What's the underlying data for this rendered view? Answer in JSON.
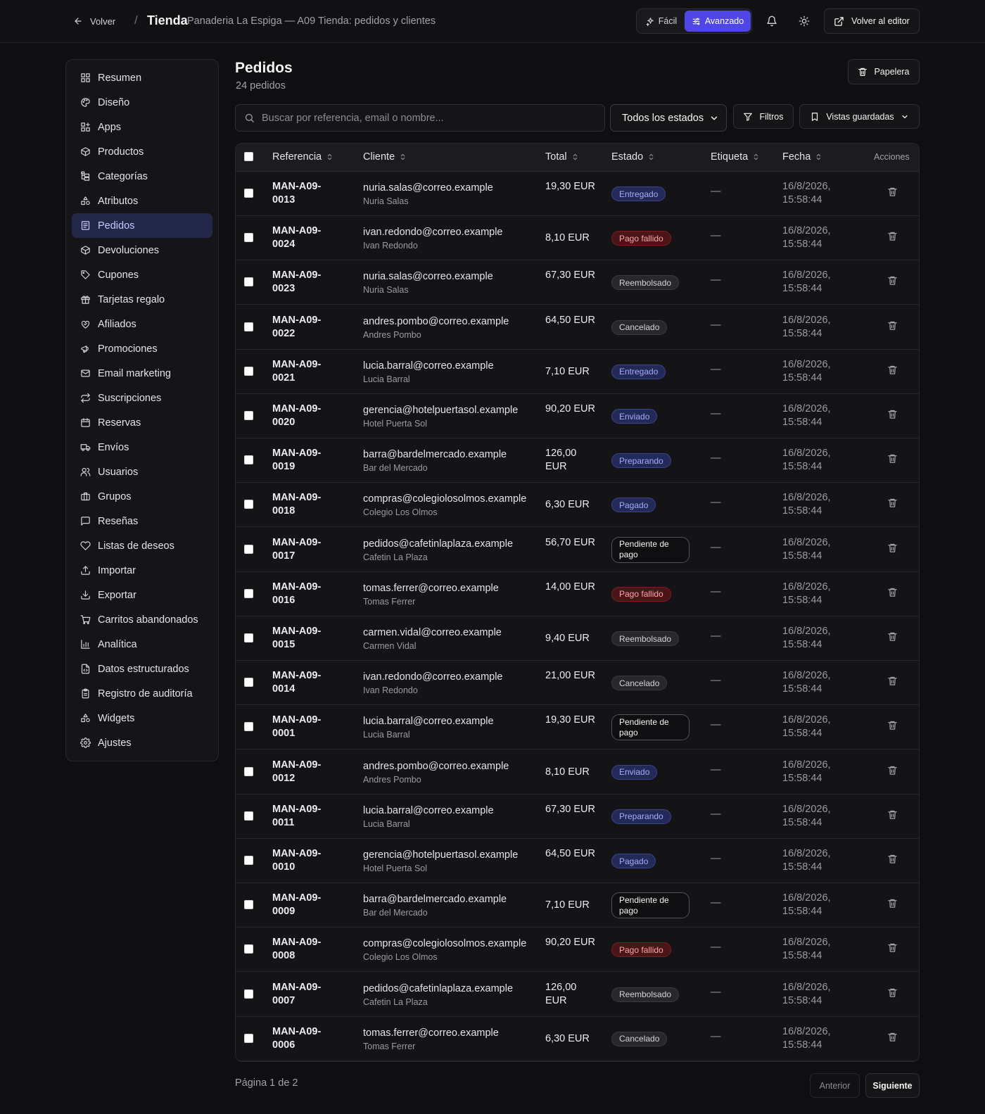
{
  "topbar": {
    "back_label": "Volver",
    "separator": "/",
    "title": "Tienda",
    "subtitle": "Panaderia La Espiga — A09 Tienda: pedidos y clientes",
    "mode_easy": "Fácil",
    "mode_advanced": "Avanzado",
    "editor_label": "Volver al editor"
  },
  "sidebar": {
    "items": [
      {
        "label": "Resumen",
        "icon": "grid-icon"
      },
      {
        "label": "Diseño",
        "icon": "palette-icon"
      },
      {
        "label": "Apps",
        "icon": "apps-icon"
      },
      {
        "label": "Productos",
        "icon": "box-icon"
      },
      {
        "label": "Categorías",
        "icon": "tree-icon"
      },
      {
        "label": "Atributos",
        "icon": "shapes-icon"
      },
      {
        "label": "Pedidos",
        "icon": "receipt-icon"
      },
      {
        "label": "Devoluciones",
        "icon": "box-icon"
      },
      {
        "label": "Cupones",
        "icon": "tag-icon"
      },
      {
        "label": "Tarjetas regalo",
        "icon": "gift-icon"
      },
      {
        "label": "Afiliados",
        "icon": "handshake-icon"
      },
      {
        "label": "Promociones",
        "icon": "megaphone-icon"
      },
      {
        "label": "Email marketing",
        "icon": "mail-icon"
      },
      {
        "label": "Suscripciones",
        "icon": "repeat-icon"
      },
      {
        "label": "Reservas",
        "icon": "calendar-icon"
      },
      {
        "label": "Envíos",
        "icon": "truck-icon"
      },
      {
        "label": "Usuarios",
        "icon": "users-icon"
      },
      {
        "label": "Grupos",
        "icon": "briefcase-icon"
      },
      {
        "label": "Reseñas",
        "icon": "message-icon"
      },
      {
        "label": "Listas de deseos",
        "icon": "heart-icon"
      },
      {
        "label": "Importar",
        "icon": "upload-icon"
      },
      {
        "label": "Exportar",
        "icon": "download-icon"
      },
      {
        "label": "Carritos abandonados",
        "icon": "cart-icon"
      },
      {
        "label": "Analítica",
        "icon": "chart-icon"
      },
      {
        "label": "Datos estructurados",
        "icon": "file-code-icon"
      },
      {
        "label": "Registro de auditoría",
        "icon": "clipboard-icon"
      },
      {
        "label": "Widgets",
        "icon": "shapes-icon"
      },
      {
        "label": "Ajustes",
        "icon": "gear-icon"
      }
    ],
    "active_index": 6
  },
  "main": {
    "title": "Pedidos",
    "count": "24 pedidos",
    "trash_label": "Papelera",
    "search_placeholder": "Buscar por referencia, email o nombre...",
    "status_filter": "Todos los estados",
    "filters_label": "Filtros",
    "saved_views_label": "Vistas guardadas"
  },
  "table": {
    "columns": {
      "reference": "Referencia",
      "client": "Cliente",
      "total": "Total",
      "status": "Estado",
      "tag": "Etiqueta",
      "date": "Fecha",
      "actions": "Acciones"
    },
    "rows": [
      {
        "ref": "MAN-A09-0013",
        "email": "nuria.salas@correo.example",
        "name": "Nuria Salas",
        "total": "19,30 EUR",
        "status": "Entregado",
        "tag": "—",
        "date": "16/8/2026, 15:58:44"
      },
      {
        "ref": "MAN-A09-0024",
        "email": "ivan.redondo@correo.example",
        "name": "Ivan Redondo",
        "total": "8,10 EUR",
        "status": "Pago fallido",
        "tag": "—",
        "date": "16/8/2026, 15:58:44"
      },
      {
        "ref": "MAN-A09-0023",
        "email": "nuria.salas@correo.example",
        "name": "Nuria Salas",
        "total": "67,30 EUR",
        "status": "Reembolsado",
        "tag": "—",
        "date": "16/8/2026, 15:58:44"
      },
      {
        "ref": "MAN-A09-0022",
        "email": "andres.pombo@correo.example",
        "name": "Andres Pombo",
        "total": "64,50 EUR",
        "status": "Cancelado",
        "tag": "—",
        "date": "16/8/2026, 15:58:44"
      },
      {
        "ref": "MAN-A09-0021",
        "email": "lucia.barral@correo.example",
        "name": "Lucia Barral",
        "total": "7,10 EUR",
        "status": "Entregado",
        "tag": "—",
        "date": "16/8/2026, 15:58:44"
      },
      {
        "ref": "MAN-A09-0020",
        "email": "gerencia@hotelpuertasol.example",
        "name": "Hotel Puerta Sol",
        "total": "90,20 EUR",
        "status": "Enviado",
        "tag": "—",
        "date": "16/8/2026, 15:58:44"
      },
      {
        "ref": "MAN-A09-0019",
        "email": "barra@bardelmercado.example",
        "name": "Bar del Mercado",
        "total": "126,00 EUR",
        "status": "Preparando",
        "tag": "—",
        "date": "16/8/2026, 15:58:44"
      },
      {
        "ref": "MAN-A09-0018",
        "email": "compras@colegiolosolmos.example",
        "name": "Colegio Los Olmos",
        "total": "6,30 EUR",
        "status": "Pagado",
        "tag": "—",
        "date": "16/8/2026, 15:58:44"
      },
      {
        "ref": "MAN-A09-0017",
        "email": "pedidos@cafetinlaplaza.example",
        "name": "Cafetin La Plaza",
        "total": "56,70 EUR",
        "status": "Pendiente de pago",
        "tag": "—",
        "date": "16/8/2026, 15:58:44"
      },
      {
        "ref": "MAN-A09-0016",
        "email": "tomas.ferrer@correo.example",
        "name": "Tomas Ferrer",
        "total": "14,00 EUR",
        "status": "Pago fallido",
        "tag": "—",
        "date": "16/8/2026, 15:58:44"
      },
      {
        "ref": "MAN-A09-0015",
        "email": "carmen.vidal@correo.example",
        "name": "Carmen Vidal",
        "total": "9,40 EUR",
        "status": "Reembolsado",
        "tag": "—",
        "date": "16/8/2026, 15:58:44"
      },
      {
        "ref": "MAN-A09-0014",
        "email": "ivan.redondo@correo.example",
        "name": "Ivan Redondo",
        "total": "21,00 EUR",
        "status": "Cancelado",
        "tag": "—",
        "date": "16/8/2026, 15:58:44"
      },
      {
        "ref": "MAN-A09-0001",
        "email": "lucia.barral@correo.example",
        "name": "Lucia Barral",
        "total": "19,30 EUR",
        "status": "Pendiente de pago",
        "tag": "—",
        "date": "16/8/2026, 15:58:44"
      },
      {
        "ref": "MAN-A09-0012",
        "email": "andres.pombo@correo.example",
        "name": "Andres Pombo",
        "total": "8,10 EUR",
        "status": "Enviado",
        "tag": "—",
        "date": "16/8/2026, 15:58:44"
      },
      {
        "ref": "MAN-A09-0011",
        "email": "lucia.barral@correo.example",
        "name": "Lucia Barral",
        "total": "67,30 EUR",
        "status": "Preparando",
        "tag": "—",
        "date": "16/8/2026, 15:58:44"
      },
      {
        "ref": "MAN-A09-0010",
        "email": "gerencia@hotelpuertasol.example",
        "name": "Hotel Puerta Sol",
        "total": "64,50 EUR",
        "status": "Pagado",
        "tag": "—",
        "date": "16/8/2026, 15:58:44"
      },
      {
        "ref": "MAN-A09-0009",
        "email": "barra@bardelmercado.example",
        "name": "Bar del Mercado",
        "total": "7,10 EUR",
        "status": "Pendiente de pago",
        "tag": "—",
        "date": "16/8/2026, 15:58:44"
      },
      {
        "ref": "MAN-A09-0008",
        "email": "compras@colegiolosolmos.example",
        "name": "Colegio Los Olmos",
        "total": "90,20 EUR",
        "status": "Pago fallido",
        "tag": "—",
        "date": "16/8/2026, 15:58:44"
      },
      {
        "ref": "MAN-A09-0007",
        "email": "pedidos@cafetinlaplaza.example",
        "name": "Cafetin La Plaza",
        "total": "126,00 EUR",
        "status": "Reembolsado",
        "tag": "—",
        "date": "16/8/2026, 15:58:44"
      },
      {
        "ref": "MAN-A09-0006",
        "email": "tomas.ferrer@correo.example",
        "name": "Tomas Ferrer",
        "total": "6,30 EUR",
        "status": "Cancelado",
        "tag": "—",
        "date": "16/8/2026, 15:58:44"
      }
    ]
  },
  "status_colors": {
    "Entregado": {
      "bg": "#232a57",
      "fg": "#a5aafc",
      "border": "#3b4290"
    },
    "Enviado": {
      "bg": "#232a57",
      "fg": "#a5aafc",
      "border": "#3b4290"
    },
    "Preparando": {
      "bg": "#232a57",
      "fg": "#a5aafc",
      "border": "#3b4290"
    },
    "Pagado": {
      "bg": "#232a57",
      "fg": "#a5aafc",
      "border": "#3b4290"
    },
    "Pago fallido": {
      "bg": "#4a1518",
      "fg": "#fca5a5",
      "border": "#7f1d1d"
    },
    "Reembolsado": {
      "bg": "#27272c",
      "fg": "#d4d4d8",
      "border": "#3a3a42"
    },
    "Cancelado": {
      "bg": "#27272c",
      "fg": "#d4d4d8",
      "border": "#3a3a42"
    },
    "Pendiente de pago": {
      "bg": "#0f0f11",
      "fg": "#f4f4f5",
      "border": "#52525b"
    }
  },
  "pagination": {
    "label": "Página 1 de 2",
    "prev": "Anterior",
    "next": "Siguiente"
  }
}
